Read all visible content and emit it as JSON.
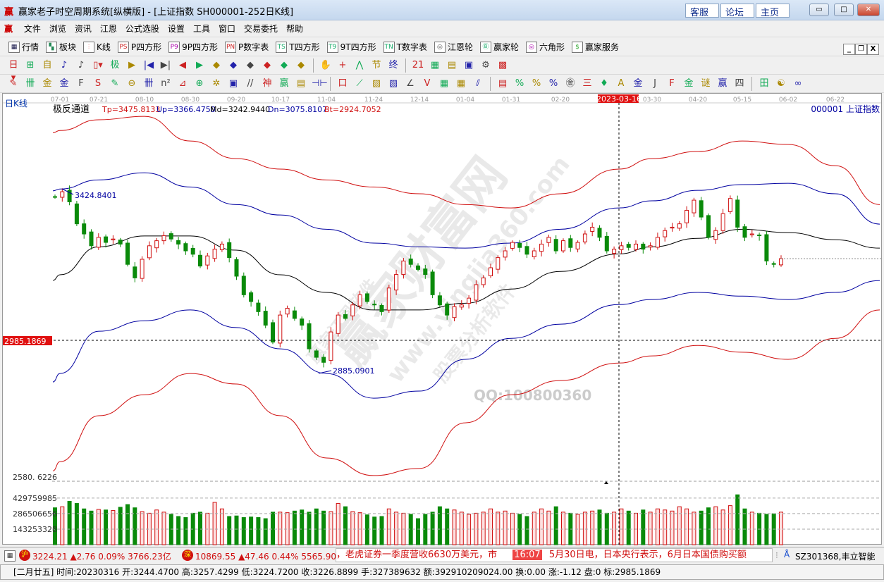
{
  "window": {
    "title": "赢家老子时空周期系统[纵横版] - [上证指数  SH000001-252日K线]",
    "logo": "赢",
    "links": [
      "客服",
      "论坛",
      "主页"
    ],
    "controls": [
      "minimize",
      "maximize",
      "close"
    ]
  },
  "menu": {
    "logo": "赢",
    "items": [
      "文件",
      "浏览",
      "资讯",
      "江恩",
      "公式选股",
      "设置",
      "工具",
      "窗口",
      "交易委托",
      "帮助"
    ],
    "mdi_controls": [
      "_",
      "❐",
      "X"
    ]
  },
  "toolbar1": [
    {
      "icon": "grid-icon",
      "glyph": "▦",
      "label": "行情"
    },
    {
      "icon": "blocks-icon",
      "glyph": "▚",
      "label": "板块"
    },
    {
      "icon": "kline-icon",
      "glyph": "⫶",
      "label": "K线"
    },
    {
      "icon": "ps-icon",
      "glyph": "PS",
      "label": "P四方形"
    },
    {
      "icon": "p9-icon",
      "glyph": "P9",
      "label": "9P四方形"
    },
    {
      "icon": "pn-icon",
      "glyph": "PN",
      "label": "P数字表"
    },
    {
      "icon": "ts-icon",
      "glyph": "TS",
      "label": "T四方形"
    },
    {
      "icon": "t9-icon",
      "glyph": "T9",
      "label": "9T四方形"
    },
    {
      "icon": "tn-icon",
      "glyph": "TN",
      "label": "T数字表"
    },
    {
      "icon": "target-icon",
      "glyph": "◎",
      "label": "江恩轮"
    },
    {
      "icon": "big-wheel-icon",
      "glyph": "Ⓑ",
      "label": "赢家轮"
    },
    {
      "icon": "hexagon-icon",
      "glyph": "◎",
      "label": "六角形"
    },
    {
      "icon": "dollar-icon",
      "glyph": "$",
      "label": "赢家服务"
    }
  ],
  "toolbar2": [
    "日▾",
    "⊞",
    "自",
    "♪",
    "♪",
    "▯▾",
    "极",
    "▶",
    "|◀",
    "▶|",
    "◀",
    "▶",
    "◆",
    "◆",
    "◆",
    "◆",
    "◆",
    "◆",
    "|",
    "✋",
    "+",
    "⋀",
    "节",
    "终",
    "|",
    "21",
    "▦",
    "▤",
    "▣",
    "⚙",
    "▩"
  ],
  "toolbar3": [
    "✎",
    "卌",
    "金",
    "金",
    "F",
    "S",
    "✎",
    "⊖",
    "卌",
    "n²",
    "⊿",
    "⊕",
    "✲",
    "▣",
    "//",
    "神",
    "赢",
    "▤",
    "⊣⊢",
    "|",
    "口",
    "⟋",
    "▨",
    "▧",
    "∠",
    "V",
    "▦",
    "▦",
    "⫽",
    "|",
    "▤",
    "%",
    "%",
    "%",
    "㊎",
    "三",
    "♦",
    "A",
    "金",
    "J",
    "F",
    "金",
    "谜",
    "赢",
    "四",
    "|",
    "田",
    "☯",
    "∞"
  ],
  "chart": {
    "period_label": "日K线",
    "indicator": {
      "name": "极反通道",
      "Tp": "Tp=3475.8133",
      "Up": "Up=3366.4750",
      "Md": "Md=3242.9440",
      "Dn": "Dn=3075.8107",
      "Bt": "Bt=2924.7052"
    },
    "symbol": "000001  上证指数",
    "crosshair_date": "2023-03-16",
    "crosshair_price": "2985.1869",
    "high_label": "3424.8401",
    "low_label": "2885.0901",
    "price_axis_label": "2580. 6226",
    "volume_axis": [
      "429759985",
      "286506656",
      "143253328"
    ],
    "watermark": [
      "赢家财富网",
      "www.yingjia360.com",
      "股票分析软件",
      "赢家江恩软件",
      "QQ:100800360"
    ]
  },
  "chart_data": {
    "type": "candlestick",
    "date_ticks": [
      "07-01",
      "07-21",
      "08-10",
      "08-30",
      "09-20",
      "10-17",
      "11-04",
      "11-24",
      "12-14",
      "01-04",
      "01-31",
      "02-20",
      "2023-03-16",
      "03-30",
      "04-20",
      "05-15",
      "06-02",
      "06-22"
    ],
    "closes": [
      3410,
      3425,
      3395,
      3330,
      3300,
      3265,
      3290,
      3275,
      3285,
      3270,
      3210,
      3170,
      3225,
      3265,
      3280,
      3295,
      3285,
      3270,
      3250,
      3240,
      3205,
      3235,
      3255,
      3270,
      3230,
      3175,
      3120,
      3100,
      3070,
      3030,
      2980,
      3060,
      3080,
      3050,
      3030,
      2960,
      2935,
      2920,
      3010,
      3060,
      3050,
      3090,
      3120,
      3100,
      3090,
      3070,
      3140,
      3180,
      3220,
      3210,
      3195,
      3180,
      3120,
      3090,
      3060,
      3085,
      3090,
      3110,
      3150,
      3170,
      3200,
      3230,
      3250,
      3275,
      3260,
      3240,
      3250,
      3270,
      3290,
      3250,
      3280,
      3260,
      3275,
      3300,
      3320,
      3290,
      3250,
      3255,
      3265,
      3260,
      3270,
      3255,
      3265,
      3290,
      3310,
      3320,
      3330,
      3370,
      3400,
      3350,
      3290,
      3310,
      3360,
      3405,
      3320,
      3290,
      3300,
      3295,
      3220,
      3210,
      3226.89
    ],
    "volumes": [
      340,
      350,
      400,
      380,
      330,
      310,
      325,
      320,
      315,
      345,
      370,
      340,
      305,
      290,
      320,
      300,
      280,
      260,
      250,
      290,
      300,
      290,
      390,
      330,
      260,
      265,
      250,
      255,
      250,
      240,
      300,
      300,
      295,
      310,
      320,
      300,
      330,
      310,
      305,
      380,
      350,
      305,
      295,
      275,
      255,
      260,
      330,
      300,
      290,
      280,
      240,
      280,
      300,
      350,
      330,
      320,
      300,
      280,
      290,
      300,
      330,
      300,
      310,
      290,
      280,
      260,
      300,
      330,
      310,
      350,
      300,
      290,
      280,
      300,
      310,
      320,
      290,
      300,
      330,
      310,
      290,
      320,
      300,
      330,
      320,
      310,
      350,
      330,
      300,
      310,
      340,
      350,
      320,
      360,
      460,
      330,
      300,
      290,
      280,
      285,
      300
    ],
    "volume_unit": "1000000",
    "bands_at_ticks": {
      "upper_outer": [
        3606,
        3638,
        3648,
        3575,
        3523,
        3492,
        3460,
        3439,
        3419,
        3387,
        3377,
        3419,
        3492,
        3523,
        3544,
        3575,
        3565,
        3502
      ],
      "upper": [
        3433,
        3460,
        3481,
        3439,
        3387,
        3356,
        3314,
        3273,
        3262,
        3258,
        3273,
        3314,
        3377,
        3398,
        3429,
        3446,
        3450,
        3419
      ],
      "middle": [
        3179,
        3262,
        3294,
        3294,
        3252,
        3179,
        3127,
        3075,
        3075,
        3095,
        3137,
        3189,
        3241,
        3262,
        3287,
        3314,
        3304,
        3283
      ],
      "lower": [
        2887,
        3012,
        3043,
        3075,
        3023,
        2960,
        2887,
        2814,
        2835,
        2929,
        2991,
        3033,
        3091,
        3106,
        3127,
        3116,
        3106,
        3127
      ],
      "lower_outer": [
        2626,
        2762,
        2824,
        2887,
        2856,
        2762,
        2637,
        2585,
        2606,
        2741,
        2824,
        2866,
        2918,
        2939,
        2970,
        2950,
        2929,
        2991
      ]
    },
    "band_end_values": {
      "upper_outer": 3387,
      "upper": 3329,
      "middle": 3258,
      "lower": 3162,
      "lower_outer": 3075
    },
    "colors": {
      "up": "#d01010",
      "down": "#0a8a0a",
      "outer_band": "#d01010",
      "band": "#0000a0",
      "middle": "#000000"
    }
  },
  "status1": {
    "sh_badge": "沪",
    "sh_text": "3224.21 ▲2.76 0.09% 3766.23亿",
    "sz_badge": "深",
    "sz_text": "10869.55 ▲47.46 0.44% 5565.90亿",
    "news1": "，老虎证券一季度营收6630万美元，市",
    "news_time": "16:07",
    "news2": "5月30日电，日本央行表示，6月日本国债购买额",
    "stock": "SZ301368,丰立智能"
  },
  "status2": {
    "text": "[二月廿五] 时间:20230316 开:3244.4700 高:3257.4299 低:3224.7200 收:3226.8899 手:327389632 额:392910209024.00 换:0.00 涨:-1.12 盘:0 标:2985.1869"
  }
}
